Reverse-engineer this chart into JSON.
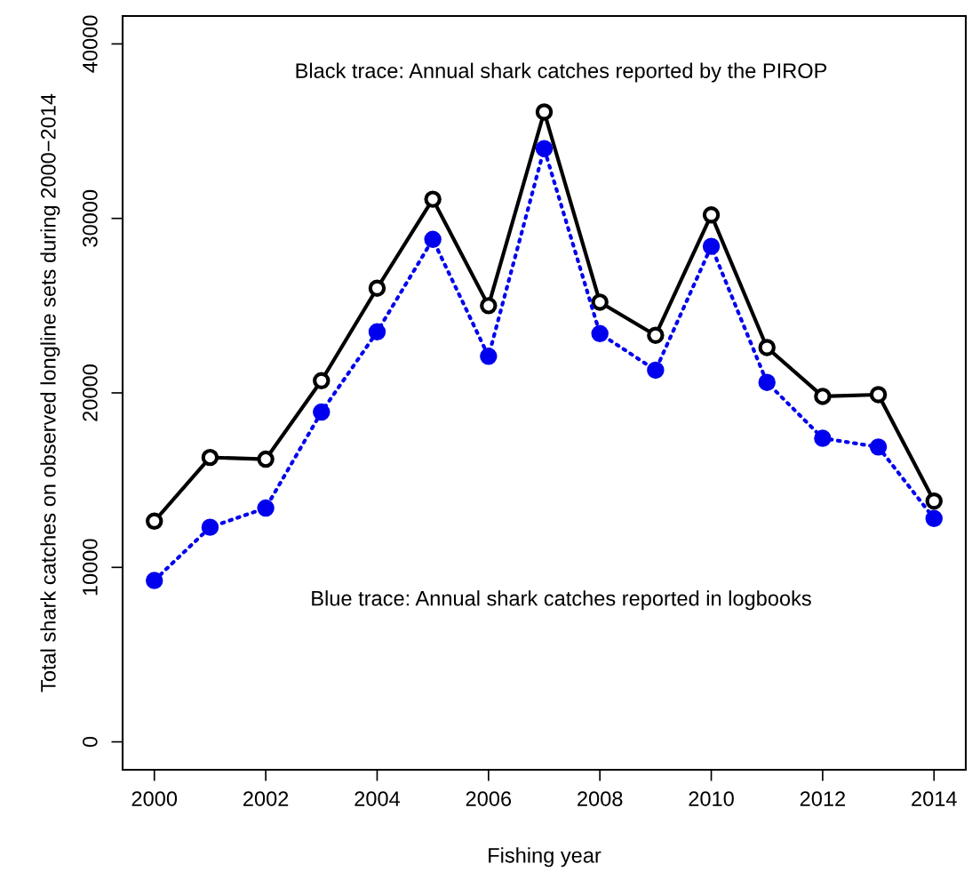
{
  "chart_data": {
    "type": "line",
    "xlabel": "Fishing year",
    "ylabel": "Total shark catches on observed longline sets during 2000−2014",
    "x": [
      2000,
      2001,
      2002,
      2003,
      2004,
      2005,
      2006,
      2007,
      2008,
      2009,
      2010,
      2011,
      2012,
      2013,
      2014
    ],
    "series": [
      {
        "color": "#000000",
        "line_style": "solid",
        "values": [
          12650,
          16300,
          16200,
          20700,
          26000,
          31100,
          25000,
          36100,
          25200,
          23300,
          30200,
          22600,
          19800,
          19900,
          13800
        ]
      },
      {
        "color": "#0000ee",
        "line_style": "dotted",
        "values": [
          9250,
          12300,
          13400,
          18900,
          23500,
          28800,
          22100,
          34000,
          23400,
          21300,
          28400,
          20600,
          17400,
          16900,
          12800
        ]
      }
    ],
    "xlim": [
      1999.43,
      2014.57
    ],
    "ylim": [
      -1600,
      41600
    ],
    "xticks": [
      2000,
      2002,
      2004,
      2006,
      2008,
      2010,
      2012,
      2014
    ],
    "yticks": [
      0,
      10000,
      20000,
      30000,
      40000
    ],
    "marker": "circle",
    "grid": false,
    "legend": false,
    "annotations": [
      "Black trace: Annual shark catches reported by the PIROP",
      "Blue trace: Annual shark catches reported in logbooks"
    ]
  }
}
